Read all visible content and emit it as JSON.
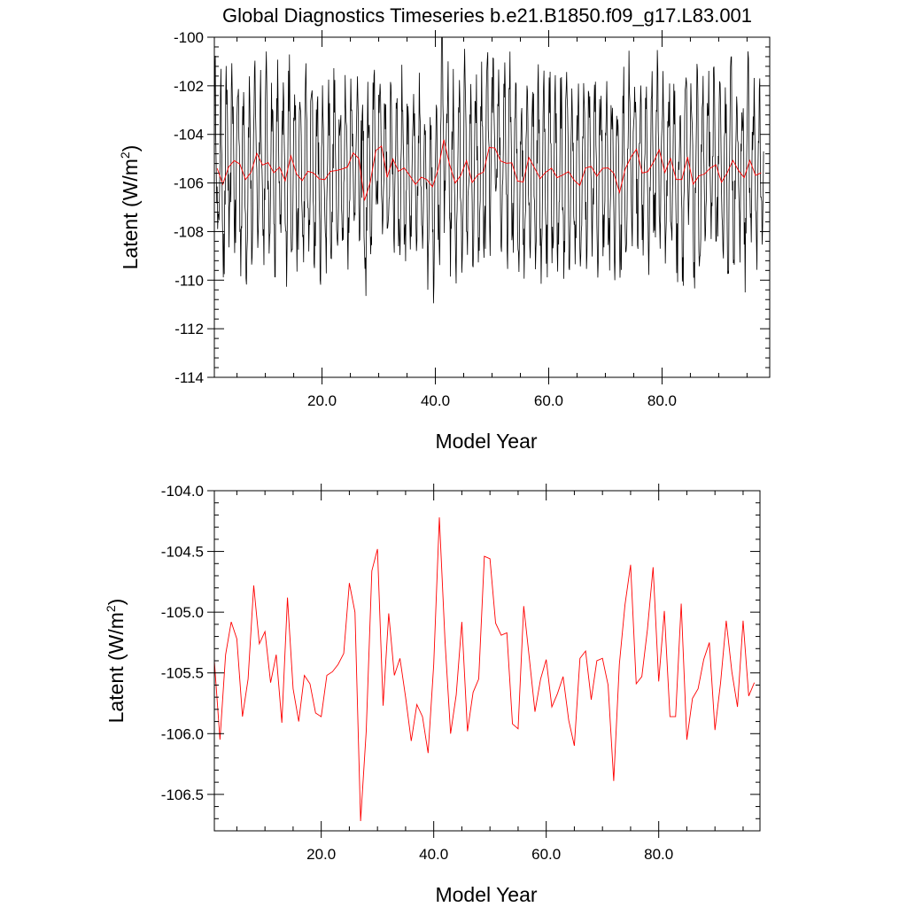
{
  "title": "Global Diagnostics Timeseries b.e21.B1850.f09_g17.L83.001",
  "colors": {
    "monthly": "#000000",
    "annual": "#ff0000",
    "frame": "#000000"
  },
  "chart_data": [
    {
      "type": "line",
      "title": "Global Diagnostics Timeseries b.e21.B1850.f09_g17.L83.001",
      "xlabel": "Model Year",
      "ylabel": {
        "text": "Latent (W/m",
        "sup": "2",
        "close": ")"
      },
      "xlim": [
        1,
        99
      ],
      "ylim": [
        -114,
        -100
      ],
      "x_ticks": [
        20,
        40,
        60,
        80
      ],
      "x_tick_labels": [
        "20.0",
        "40.0",
        "60.0",
        "80.0"
      ],
      "y_ticks": [
        -114,
        -112,
        -110,
        -108,
        -106,
        -104,
        -102,
        -100
      ],
      "y_tick_labels": [
        "-114",
        "-112",
        "-110",
        "-108",
        "-106",
        "-104",
        "-102",
        "-100"
      ],
      "grid": false,
      "series": [
        {
          "kind": "monthly",
          "x_start": 1,
          "x_step": 0.0833333,
          "seasonal_amplitude": 3.2,
          "seasonal_phase_month": 2,
          "noise_amplitude": 1.6,
          "y_min_observed": -112.5,
          "y_max_observed": -100.0
        },
        {
          "kind": "annual",
          "x_start": 1,
          "x_step": 1
        }
      ]
    },
    {
      "type": "line",
      "xlabel": "Model Year",
      "ylabel": {
        "text": "Latent (W/m",
        "sup": "2",
        "close": ")"
      },
      "xlim": [
        1,
        98
      ],
      "ylim": [
        -106.8,
        -104.0
      ],
      "x_ticks": [
        20,
        40,
        60,
        80
      ],
      "x_tick_labels": [
        "20.0",
        "40.0",
        "60.0",
        "80.0"
      ],
      "y_ticks": [
        -106.5,
        -106.0,
        -105.5,
        -105.0,
        -104.5,
        -104.0
      ],
      "y_tick_labels": [
        "-106.5",
        "-106.0",
        "-105.5",
        "-105.0",
        "-104.5",
        "-104.0"
      ],
      "grid": false,
      "series": [
        {
          "kind": "annual",
          "x_start": 1,
          "x_step": 1,
          "values": [
            -105.4,
            -106.05,
            -105.35,
            -105.08,
            -105.22,
            -105.86,
            -105.55,
            -104.78,
            -105.26,
            -105.16,
            -105.58,
            -105.35,
            -105.91,
            -104.88,
            -105.63,
            -105.9,
            -105.52,
            -105.59,
            -105.83,
            -105.86,
            -105.52,
            -105.49,
            -105.43,
            -105.34,
            -104.76,
            -105.0,
            -106.72,
            -105.98,
            -104.66,
            -104.48,
            -105.77,
            -105.01,
            -105.52,
            -105.38,
            -105.7,
            -106.06,
            -105.76,
            -105.86,
            -106.16,
            -105.43,
            -104.22,
            -105.23,
            -106.0,
            -105.68,
            -105.08,
            -105.98,
            -105.66,
            -105.55,
            -104.54,
            -104.56,
            -105.09,
            -105.19,
            -105.17,
            -105.92,
            -105.96,
            -104.95,
            -105.38,
            -105.82,
            -105.55,
            -105.39,
            -105.78,
            -105.67,
            -105.53,
            -105.89,
            -106.1,
            -105.38,
            -105.32,
            -105.72,
            -105.4,
            -105.38,
            -105.6,
            -106.39,
            -105.43,
            -104.94,
            -104.61,
            -105.59,
            -105.53,
            -105.14,
            -104.63,
            -105.57,
            -104.99,
            -105.86,
            -105.86,
            -104.93,
            -106.05,
            -105.71,
            -105.63,
            -105.39,
            -105.25,
            -105.97,
            -105.58,
            -105.07,
            -105.49,
            -105.78,
            -105.07,
            -105.69,
            -105.58
          ]
        }
      ]
    }
  ]
}
